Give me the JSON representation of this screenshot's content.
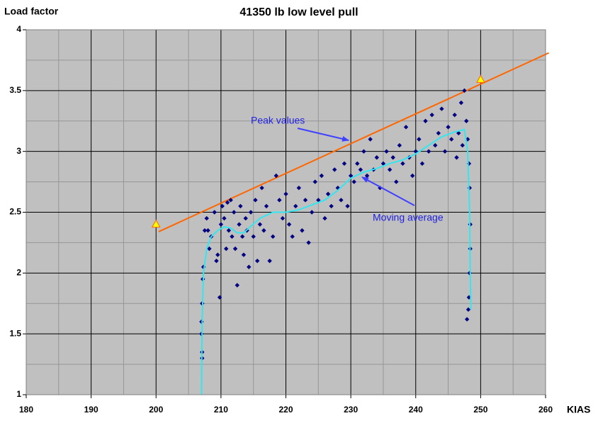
{
  "chart_data": {
    "type": "scatter",
    "title": "41350 lb low level pull",
    "x_label": "KIAS",
    "y_label": "Load factor",
    "xlim": [
      180,
      260
    ],
    "xticks": [
      180,
      190,
      200,
      210,
      220,
      230,
      240,
      250,
      260
    ],
    "ylim": [
      1,
      4
    ],
    "yticks": [
      1,
      1.5,
      2,
      2.5,
      3,
      3.5,
      4
    ],
    "grid": true,
    "minor_grid": true,
    "background": "#c0c0c0",
    "scatter": {
      "color": "#000080",
      "x": [
        207.1,
        207.1,
        207.0,
        207.0,
        207.1,
        207.2,
        207.3,
        207.5,
        207.8,
        208.0,
        208.2,
        208.5,
        209.0,
        209.3,
        209.5,
        209.8,
        210.0,
        210.2,
        210.5,
        210.8,
        211.0,
        211.2,
        211.5,
        211.7,
        212.0,
        212.2,
        212.5,
        212.8,
        213.0,
        213.3,
        213.5,
        213.8,
        214.0,
        214.3,
        214.6,
        215.0,
        215.3,
        215.6,
        216.0,
        216.3,
        216.6,
        217.0,
        217.5,
        218.0,
        218.5,
        219.0,
        219.5,
        220.0,
        220.5,
        221.0,
        221.5,
        222.0,
        222.5,
        223.0,
        223.5,
        224.0,
        224.5,
        225.0,
        225.5,
        226.0,
        226.5,
        227.0,
        227.5,
        228.0,
        228.5,
        229.0,
        229.5,
        230.0,
        230.5,
        231.0,
        231.5,
        232.0,
        232.5,
        233.0,
        233.5,
        234.0,
        234.5,
        235.0,
        235.5,
        236.0,
        236.5,
        237.0,
        237.5,
        238.0,
        238.5,
        239.0,
        239.5,
        240.0,
        240.5,
        241.0,
        241.5,
        242.0,
        242.5,
        243.0,
        243.5,
        244.0,
        244.5,
        245.0,
        245.5,
        246.0,
        246.3,
        246.6,
        247.0,
        247.2,
        247.5,
        247.8,
        248.0,
        248.2,
        248.3,
        248.4,
        248.4,
        248.3,
        248.2,
        248.1,
        247.9
      ],
      "y": [
        1.3,
        1.35,
        1.5,
        1.6,
        1.75,
        1.95,
        2.05,
        2.35,
        2.45,
        2.35,
        2.2,
        2.3,
        2.5,
        2.1,
        2.15,
        1.8,
        2.4,
        2.55,
        2.45,
        2.2,
        2.58,
        2.35,
        2.6,
        2.3,
        2.5,
        2.2,
        1.9,
        2.4,
        2.55,
        2.3,
        2.15,
        2.45,
        2.35,
        2.05,
        2.5,
        2.3,
        2.6,
        2.1,
        2.4,
        2.7,
        2.35,
        2.55,
        2.1,
        2.3,
        2.8,
        2.6,
        2.45,
        2.65,
        2.4,
        2.3,
        2.55,
        2.7,
        2.35,
        2.6,
        2.25,
        2.5,
        2.75,
        2.6,
        2.8,
        2.45,
        2.65,
        2.55,
        2.85,
        2.7,
        2.6,
        2.9,
        2.55,
        2.8,
        2.75,
        2.9,
        2.85,
        3.0,
        2.8,
        3.1,
        2.85,
        2.95,
        2.7,
        2.9,
        3.0,
        2.85,
        2.95,
        2.75,
        3.05,
        2.9,
        3.2,
        2.95,
        2.8,
        3.0,
        3.1,
        2.9,
        3.25,
        3.0,
        3.3,
        3.05,
        3.15,
        3.35,
        3.0,
        3.2,
        3.1,
        3.3,
        2.95,
        3.15,
        3.4,
        3.05,
        3.5,
        3.25,
        3.1,
        2.9,
        2.7,
        2.4,
        2.2,
        2.0,
        1.8,
        1.7,
        1.62
      ]
    },
    "moving_average": {
      "color": "#33e6f0",
      "x": [
        207.0,
        207.1,
        207.3,
        207.8,
        208.5,
        209.5,
        210.5,
        211.5,
        212.5,
        213.5,
        214.5,
        216,
        218,
        220,
        222,
        224,
        226,
        228,
        230,
        232,
        234,
        236,
        238,
        240,
        242,
        244,
        246,
        247.5,
        248,
        248.3,
        248.4,
        248.5
      ],
      "y": [
        1.0,
        1.6,
        2.0,
        2.2,
        2.3,
        2.35,
        2.38,
        2.37,
        2.33,
        2.33,
        2.38,
        2.45,
        2.5,
        2.5,
        2.52,
        2.56,
        2.6,
        2.68,
        2.78,
        2.83,
        2.86,
        2.9,
        2.93,
        2.98,
        3.05,
        3.12,
        3.16,
        3.18,
        3.0,
        2.5,
        2.0,
        1.7
      ]
    },
    "peak_line": {
      "color": "#ff6600",
      "x": [
        200.4,
        260.5
      ],
      "y": [
        2.34,
        3.81
      ]
    },
    "peak_markers": {
      "color": "#ffff00",
      "stroke": "#ff6600",
      "x": [
        200,
        250
      ],
      "y": [
        2.4,
        3.59
      ]
    },
    "annotations": [
      {
        "text": "Peak values"
      },
      {
        "text": "Moving average"
      }
    ]
  }
}
